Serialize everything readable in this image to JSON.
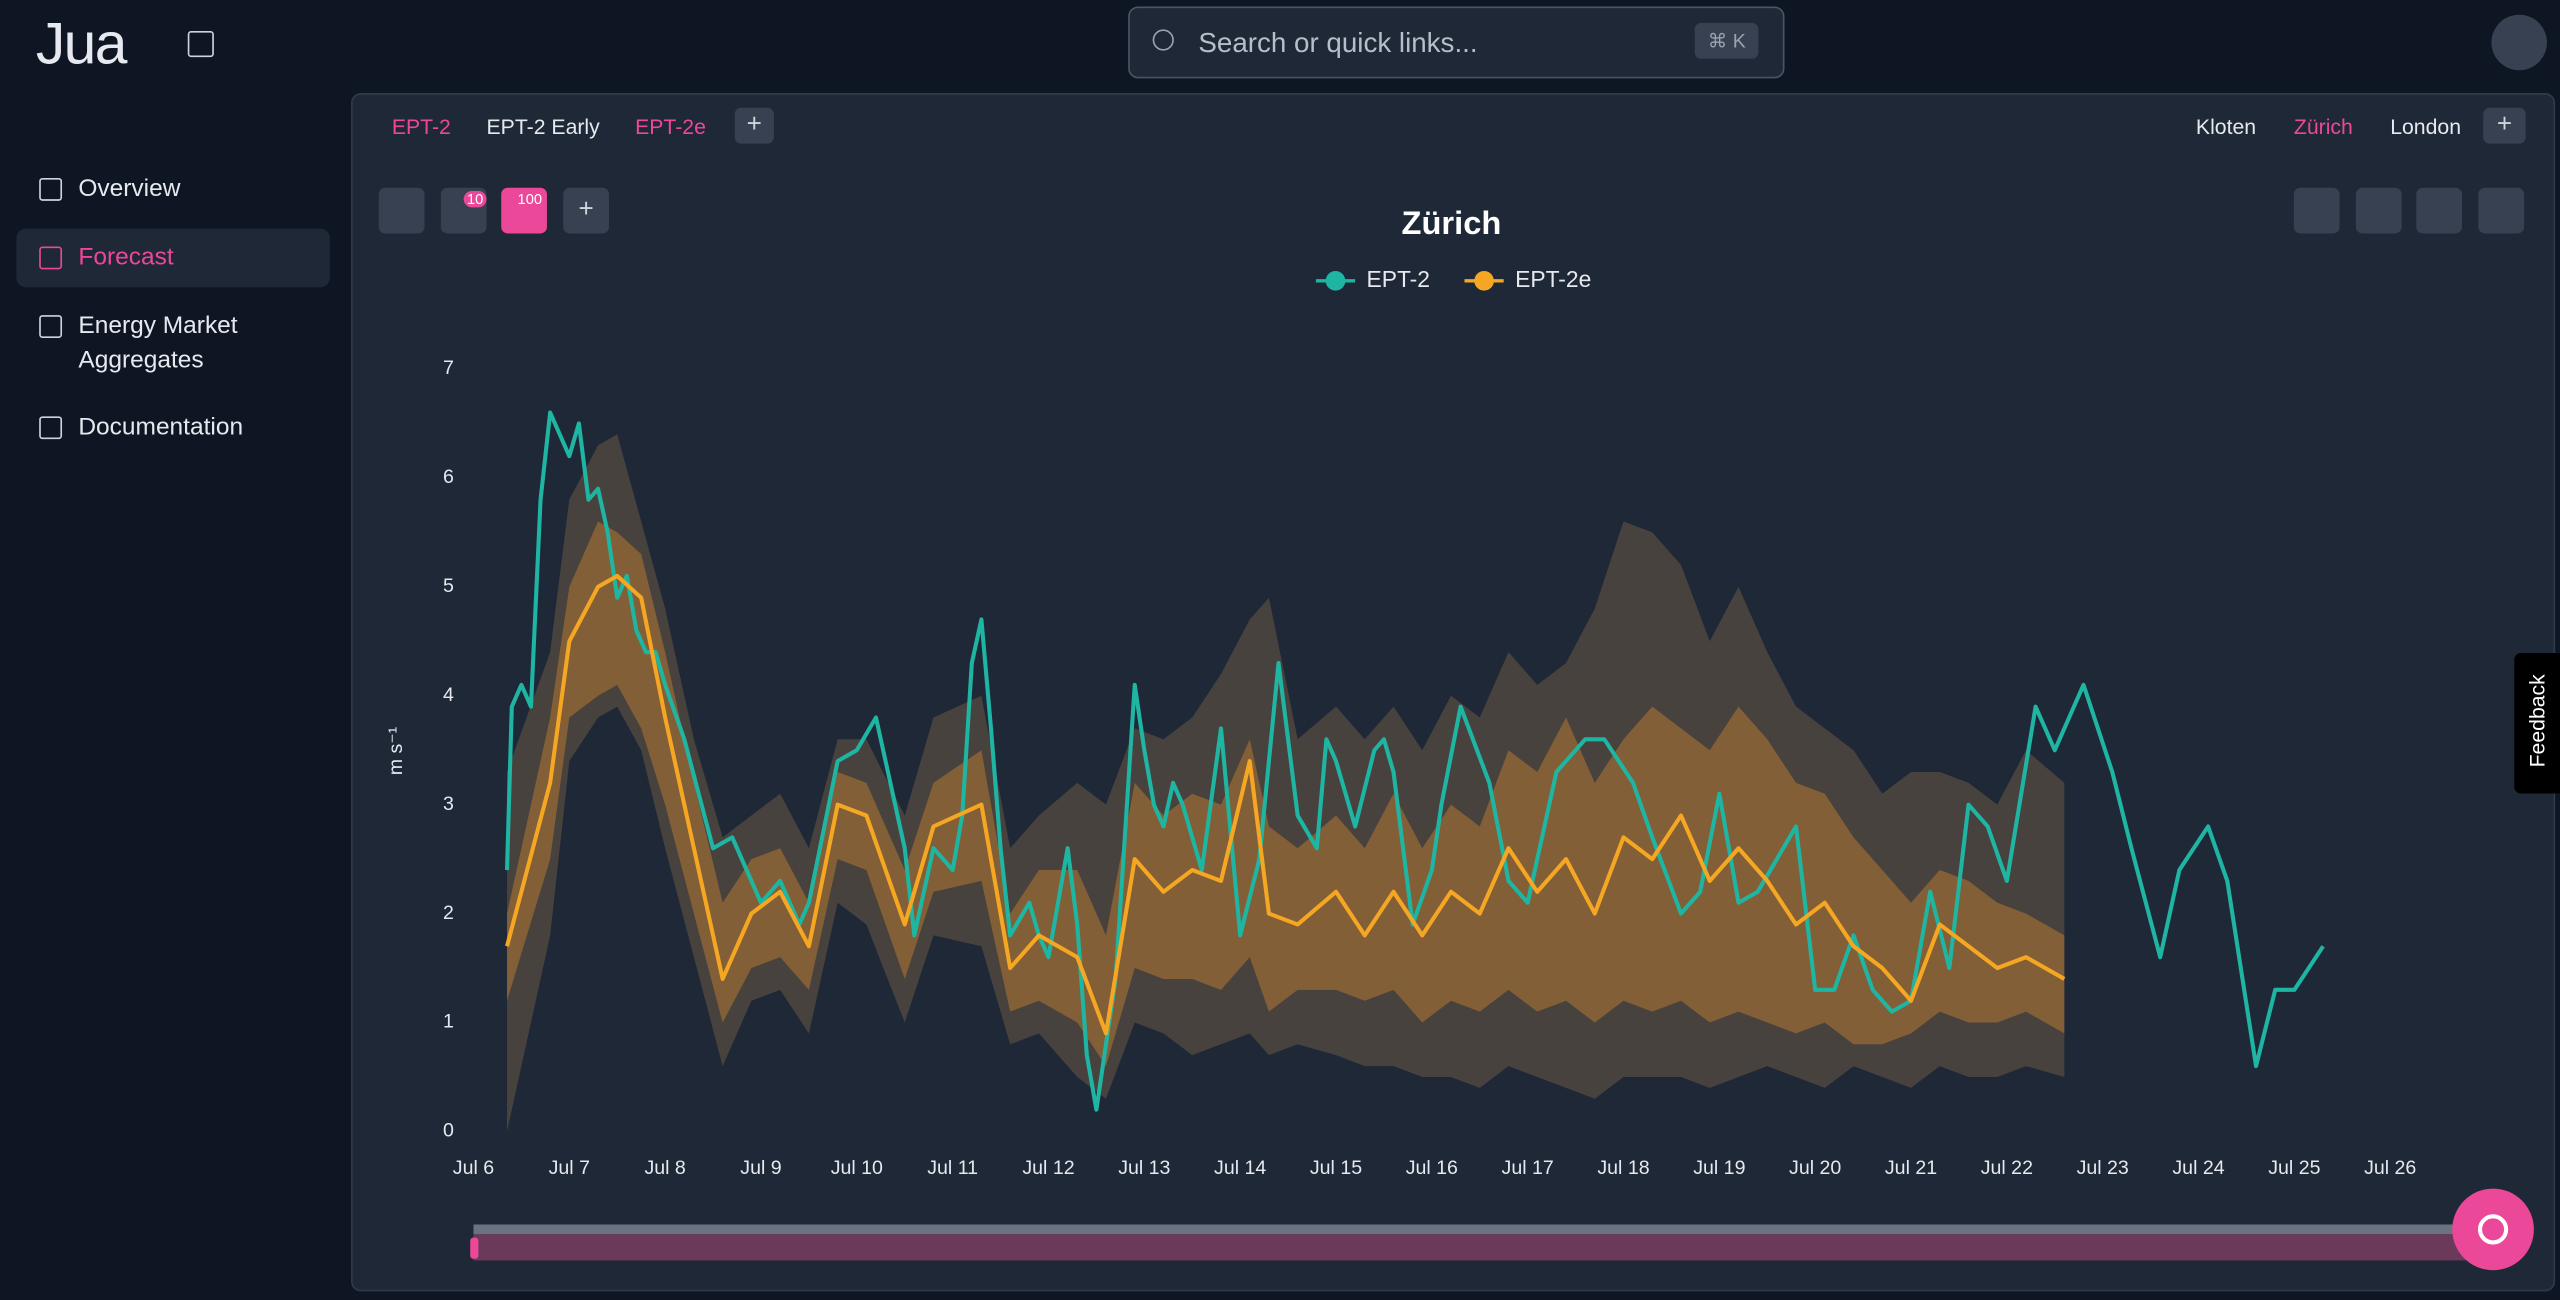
{
  "header": {
    "logo": "Jua",
    "search_placeholder": "Search or quick links...",
    "shortcut": "⌘ K"
  },
  "sidebar": {
    "items": [
      "Overview",
      "Forecast",
      "Energy Market Aggregates",
      "Documentation"
    ],
    "active": 1
  },
  "tabs": {
    "models": [
      "EPT-2",
      "EPT-2 Early",
      "EPT-2e"
    ],
    "locations": [
      "Kloten",
      "Zürich",
      "London"
    ]
  },
  "toolbar": {
    "badges": [
      "10",
      "100"
    ]
  },
  "feedback": "Feedback",
  "chart_data": {
    "type": "line",
    "title": "Zürich",
    "y_label": "m s⁻¹",
    "xlim": [
      0,
      20.5
    ],
    "ylim": [
      0,
      7
    ],
    "yticks": [
      0,
      1,
      2,
      3,
      4,
      5,
      6,
      7
    ],
    "xticks": [
      {
        "value": 0,
        "label": "Jul 6"
      },
      {
        "value": 1,
        "label": "Jul 7"
      },
      {
        "value": 2,
        "label": "Jul 8"
      },
      {
        "value": 3,
        "label": "Jul 9"
      },
      {
        "value": 4,
        "label": "Jul 10"
      },
      {
        "value": 5,
        "label": "Jul 11"
      },
      {
        "value": 6,
        "label": "Jul 12"
      },
      {
        "value": 7,
        "label": "Jul 13"
      },
      {
        "value": 8,
        "label": "Jul 14"
      },
      {
        "value": 9,
        "label": "Jul 15"
      },
      {
        "value": 10,
        "label": "Jul 16"
      },
      {
        "value": 11,
        "label": "Jul 17"
      },
      {
        "value": 12,
        "label": "Jul 18"
      },
      {
        "value": 13,
        "label": "Jul 19"
      },
      {
        "value": 14,
        "label": "Jul 20"
      },
      {
        "value": 15,
        "label": "Jul 21"
      },
      {
        "value": 16,
        "label": "Jul 22"
      },
      {
        "value": 17,
        "label": "Jul 23"
      },
      {
        "value": 18,
        "label": "Jul 24"
      },
      {
        "value": 19,
        "label": "Jul 25"
      },
      {
        "value": 20,
        "label": "Jul 26"
      }
    ],
    "series": [
      {
        "name": "EPT-2",
        "color": "#1fb5a3",
        "x": [
          0.35,
          0.4,
          0.5,
          0.6,
          0.7,
          0.8,
          0.9,
          1.0,
          1.1,
          1.2,
          1.3,
          1.4,
          1.5,
          1.6,
          1.7,
          1.8,
          1.9,
          2.0,
          2.2,
          2.5,
          2.7,
          2.8,
          3.0,
          3.2,
          3.4,
          3.5,
          3.8,
          4.0,
          4.2,
          4.5,
          4.6,
          4.8,
          5.0,
          5.1,
          5.2,
          5.3,
          5.4,
          5.5,
          5.6,
          5.8,
          5.9,
          6.0,
          6.2,
          6.3,
          6.4,
          6.5,
          6.7,
          6.9,
          7.0,
          7.1,
          7.2,
          7.3,
          7.4,
          7.6,
          7.8,
          8.0,
          8.2,
          8.4,
          8.6,
          8.8,
          8.9,
          9.0,
          9.2,
          9.4,
          9.5,
          9.6,
          9.8,
          10.0,
          10.1,
          10.3,
          10.6,
          10.8,
          11.0,
          11.3,
          11.6,
          11.8,
          12.1,
          12.3,
          12.6,
          12.8,
          13.0,
          13.2,
          13.4,
          13.8,
          14.0,
          14.2,
          14.4,
          14.6,
          14.8,
          15.0,
          15.2,
          15.4,
          15.6,
          15.8,
          16.0,
          16.3,
          16.5,
          16.8,
          17.1,
          17.3,
          17.6,
          17.8,
          18.1,
          18.3,
          18.6,
          18.8,
          19.0,
          19.3
        ],
        "values": [
          2.4,
          3.9,
          4.1,
          3.9,
          5.8,
          6.6,
          6.4,
          6.2,
          6.5,
          5.8,
          5.9,
          5.5,
          4.9,
          5.1,
          4.6,
          4.4,
          4.4,
          4.1,
          3.6,
          2.6,
          2.7,
          2.5,
          2.1,
          2.3,
          1.9,
          2.1,
          3.4,
          3.5,
          3.8,
          2.6,
          1.8,
          2.6,
          2.4,
          2.9,
          4.3,
          4.7,
          3.7,
          2.6,
          1.8,
          2.1,
          1.8,
          1.6,
          2.6,
          1.9,
          0.7,
          0.2,
          1.4,
          4.1,
          3.5,
          3.0,
          2.8,
          3.2,
          3.0,
          2.4,
          3.7,
          1.8,
          2.5,
          4.3,
          2.9,
          2.6,
          3.6,
          3.4,
          2.8,
          3.5,
          3.6,
          3.3,
          1.9,
          2.4,
          3.0,
          3.9,
          3.2,
          2.3,
          2.1,
          3.3,
          3.6,
          3.6,
          3.2,
          2.7,
          2.0,
          2.2,
          3.1,
          2.1,
          2.2,
          2.8,
          1.3,
          1.3,
          1.8,
          1.3,
          1.1,
          1.2,
          2.2,
          1.5,
          3.0,
          2.8,
          2.3,
          3.9,
          3.5,
          4.1,
          3.3,
          2.6,
          1.6,
          2.4,
          2.8,
          2.3,
          0.6,
          1.3,
          1.3,
          1.7
        ]
      },
      {
        "name": "EPT-2e",
        "color": "#f5a623",
        "x": [
          0.35,
          0.8,
          1.0,
          1.3,
          1.5,
          1.75,
          2.0,
          2.3,
          2.6,
          2.9,
          3.2,
          3.5,
          3.8,
          4.1,
          4.5,
          4.8,
          5.3,
          5.6,
          5.9,
          6.3,
          6.6,
          6.9,
          7.2,
          7.5,
          7.8,
          8.1,
          8.3,
          8.6,
          9.0,
          9.3,
          9.6,
          9.9,
          10.2,
          10.5,
          10.8,
          11.1,
          11.4,
          11.7,
          12.0,
          12.3,
          12.6,
          12.9,
          13.2,
          13.5,
          13.8,
          14.1,
          14.4,
          14.7,
          15.0,
          15.3,
          15.6,
          15.9,
          16.2,
          16.6
        ],
        "values": [
          1.7,
          3.2,
          4.5,
          5.0,
          5.1,
          4.9,
          3.8,
          2.6,
          1.4,
          2.0,
          2.2,
          1.7,
          3.0,
          2.9,
          1.9,
          2.8,
          3.0,
          1.5,
          1.8,
          1.6,
          0.9,
          2.5,
          2.2,
          2.4,
          2.3,
          3.4,
          2.0,
          1.9,
          2.2,
          1.8,
          2.2,
          1.8,
          2.2,
          2.0,
          2.6,
          2.2,
          2.5,
          2.0,
          2.7,
          2.5,
          2.9,
          2.3,
          2.6,
          2.3,
          1.9,
          2.1,
          1.7,
          1.5,
          1.2,
          1.9,
          1.7,
          1.5,
          1.6,
          1.4
        ],
        "bands": {
          "inner": {
            "lower": [
              1.2,
              2.5,
              3.8,
              4.0,
              4.1,
              3.7,
              3.0,
              2.0,
              1.0,
              1.5,
              1.6,
              1.3,
              2.5,
              2.4,
              1.4,
              2.2,
              2.3,
              1.1,
              1.2,
              1.0,
              0.6,
              1.5,
              1.4,
              1.4,
              1.3,
              1.6,
              1.1,
              1.3,
              1.3,
              1.2,
              1.3,
              1.0,
              1.2,
              1.1,
              1.3,
              1.1,
              1.2,
              1.0,
              1.2,
              1.1,
              1.2,
              1.0,
              1.1,
              1.0,
              0.9,
              1.0,
              0.8,
              0.8,
              0.9,
              1.1,
              1.0,
              1.0,
              1.1,
              0.9
            ],
            "upper": [
              2.0,
              3.8,
              5.0,
              5.6,
              5.5,
              5.3,
              4.4,
              3.2,
              2.1,
              2.5,
              2.6,
              2.1,
              3.3,
              3.2,
              2.4,
              3.2,
              3.5,
              2.0,
              2.4,
              2.4,
              1.8,
              3.2,
              2.9,
              3.1,
              3.0,
              3.6,
              2.8,
              2.6,
              2.9,
              2.6,
              3.1,
              2.6,
              3.0,
              2.8,
              3.5,
              3.3,
              3.8,
              3.2,
              3.6,
              3.9,
              3.7,
              3.5,
              3.9,
              3.6,
              3.2,
              3.1,
              2.7,
              2.4,
              2.1,
              2.4,
              2.3,
              2.1,
              2.0,
              1.8
            ]
          },
          "outer": {
            "lower": [
              0.0,
              1.8,
              3.4,
              3.8,
              3.9,
              3.5,
              2.6,
              1.6,
              0.6,
              1.2,
              1.3,
              0.9,
              2.1,
              1.9,
              1.0,
              1.8,
              1.7,
              0.8,
              0.9,
              0.5,
              0.3,
              1.0,
              0.9,
              0.7,
              0.8,
              0.9,
              0.7,
              0.8,
              0.7,
              0.6,
              0.6,
              0.5,
              0.5,
              0.4,
              0.6,
              0.5,
              0.4,
              0.3,
              0.5,
              0.5,
              0.5,
              0.4,
              0.5,
              0.6,
              0.5,
              0.4,
              0.6,
              0.5,
              0.4,
              0.6,
              0.5,
              0.5,
              0.6,
              0.5
            ],
            "upper": [
              3.3,
              4.4,
              5.8,
              6.3,
              6.4,
              5.6,
              4.8,
              3.6,
              2.7,
              2.9,
              3.1,
              2.6,
              3.6,
              3.6,
              2.9,
              3.8,
              4.0,
              2.6,
              2.9,
              3.2,
              3.0,
              3.7,
              3.6,
              3.8,
              4.2,
              4.7,
              4.9,
              3.6,
              3.9,
              3.6,
              3.9,
              3.5,
              4.0,
              3.8,
              4.4,
              4.1,
              4.3,
              4.8,
              5.6,
              5.5,
              5.2,
              4.5,
              5.0,
              4.4,
              3.9,
              3.7,
              3.5,
              3.1,
              3.3,
              3.3,
              3.2,
              3.0,
              3.5,
              3.2
            ]
          }
        }
      }
    ]
  }
}
